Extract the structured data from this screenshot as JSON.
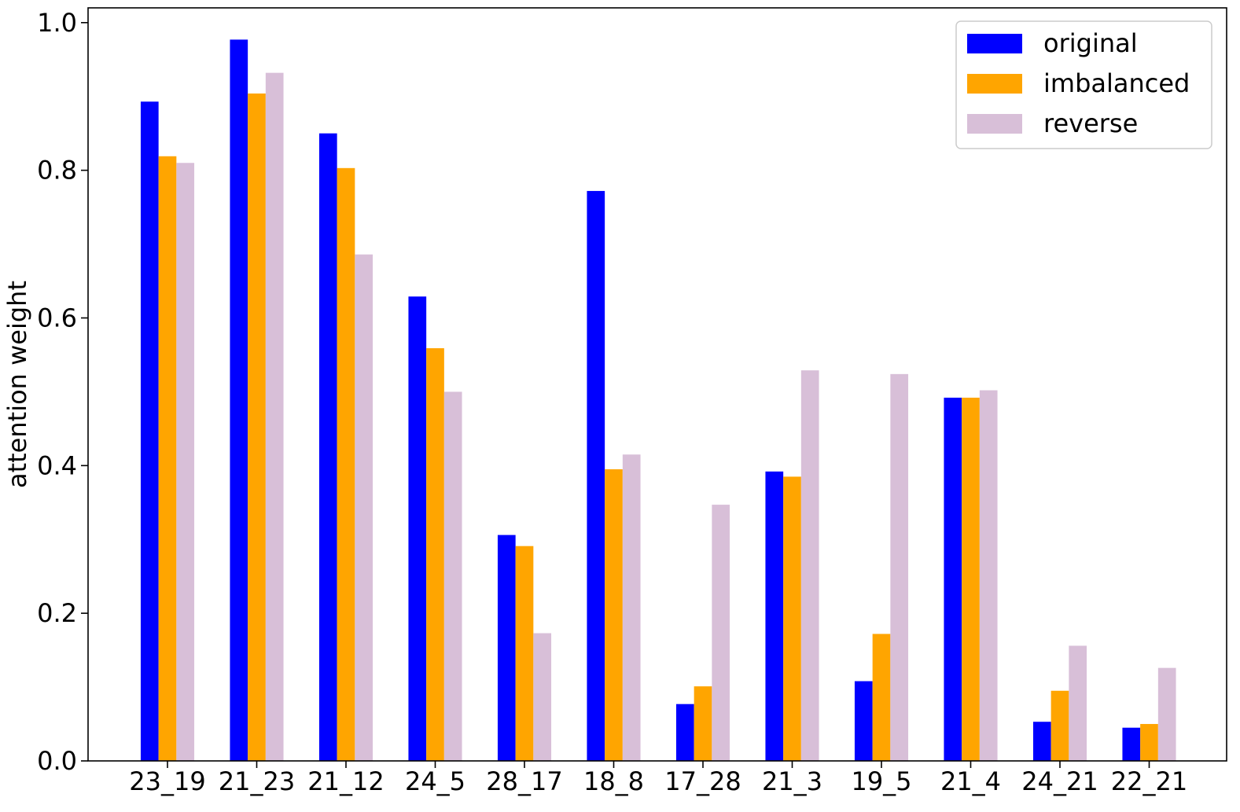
{
  "chart_data": {
    "type": "bar",
    "title": "",
    "xlabel": "",
    "ylabel": "attention weight",
    "ylim": [
      0,
      1.02
    ],
    "yticks": [
      0.0,
      0.2,
      0.4,
      0.6,
      0.8,
      1.0
    ],
    "ytick_labels": [
      "0.0",
      "0.2",
      "0.4",
      "0.6",
      "0.8",
      "1.0"
    ],
    "grid": false,
    "legend_position": "top-right",
    "categories": [
      "23_19",
      "21_23",
      "21_12",
      "24_5",
      "28_17",
      "18_8",
      "17_28",
      "21_3",
      "19_5",
      "21_4",
      "24_21",
      "22_21"
    ],
    "series": [
      {
        "name": "original",
        "color": "#0000ff",
        "values": [
          0.893,
          0.977,
          0.85,
          0.629,
          0.306,
          0.772,
          0.077,
          0.392,
          0.108,
          0.492,
          0.053,
          0.045
        ]
      },
      {
        "name": "imbalanced",
        "color": "#ffa500",
        "values": [
          0.819,
          0.904,
          0.803,
          0.559,
          0.291,
          0.395,
          0.101,
          0.385,
          0.172,
          0.492,
          0.095,
          0.05
        ]
      },
      {
        "name": "reverse",
        "color": "#d8bfd8",
        "values": [
          0.81,
          0.932,
          0.686,
          0.5,
          0.173,
          0.415,
          0.347,
          0.529,
          0.524,
          0.502,
          0.156,
          0.126
        ]
      }
    ]
  }
}
